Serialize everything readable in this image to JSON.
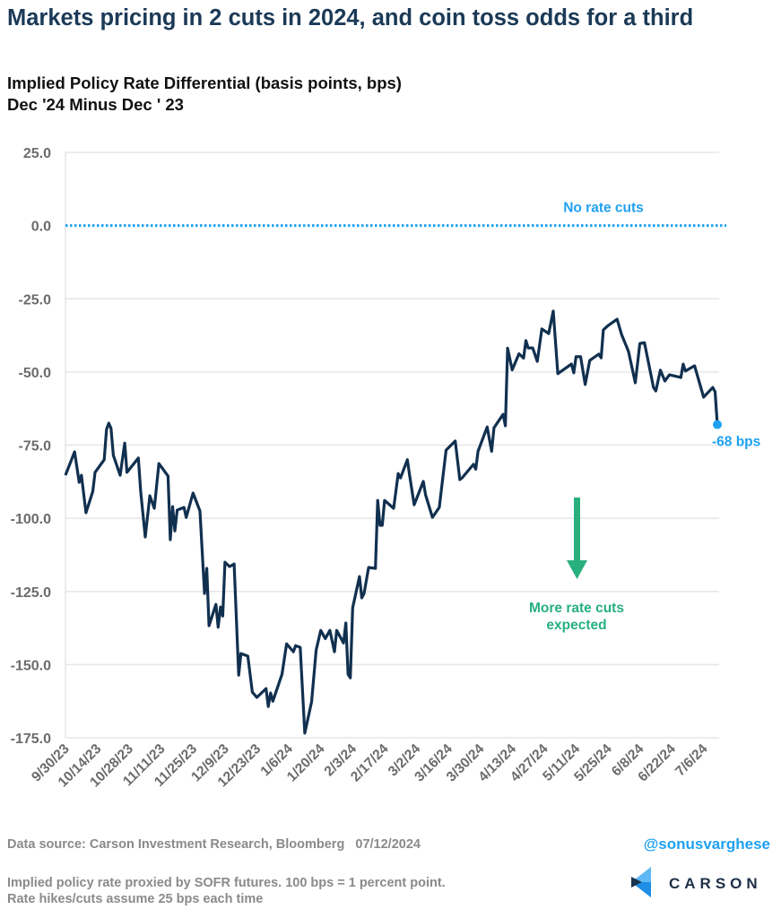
{
  "title": "Markets pricing in 2 cuts in 2024, and coin toss odds for a third",
  "subtitle_line1": "Implied Policy Rate Differential (basis points, bps)",
  "subtitle_line2": "Dec '24 Minus Dec ' 23",
  "footer": {
    "source": "Data source: Carson Investment Research, Bloomberg   07/12/2024",
    "handle": "@sonusvarghese",
    "note_line1": "Implied policy rate proxied by SOFR futures. 100 bps = 1 percent point.",
    "note_line2": "Rate hikes/cuts assume 25 bps each time",
    "logo_text": "CARSON"
  },
  "colors": {
    "line": "#11304f",
    "reference": "#1ea1f2",
    "arrow": "#27b07e",
    "grid": "#e6e6e6",
    "tick_text": "#6b6b6b"
  },
  "chart_data": {
    "type": "line",
    "title": "Implied Policy Rate Differential (basis points, bps)",
    "ylim": [
      -175,
      25
    ],
    "xlim": [
      "2023-09-30",
      "2024-07-12"
    ],
    "grid": true,
    "y_ticks": [
      "25.0",
      "0.0",
      "-25.0",
      "-50.0",
      "-75.0",
      "-100.0",
      "-125.0",
      "-150.0",
      "-175.0"
    ],
    "y_tick_values": [
      25,
      0,
      -25,
      -50,
      -75,
      -100,
      -125,
      -150,
      -175
    ],
    "x_ticks": [
      "9/30/23",
      "10/14/23",
      "10/28/23",
      "11/11/23",
      "11/25/23",
      "12/9/23",
      "12/23/23",
      "1/6/24",
      "1/20/24",
      "2/3/24",
      "2/17/24",
      "3/2/24",
      "3/16/24",
      "3/30/24",
      "4/13/24",
      "4/27/24",
      "5/11/24",
      "5/25/24",
      "6/8/24",
      "6/22/24",
      "7/6/24"
    ],
    "x_tick_dates": [
      "2023-09-30",
      "2023-10-14",
      "2023-10-28",
      "2023-11-11",
      "2023-11-25",
      "2023-12-09",
      "2023-12-23",
      "2024-01-06",
      "2024-01-20",
      "2024-02-03",
      "2024-02-17",
      "2024-03-02",
      "2024-03-16",
      "2024-03-30",
      "2024-04-13",
      "2024-04-27",
      "2024-05-11",
      "2024-05-25",
      "2024-06-08",
      "2024-06-22",
      "2024-07-06"
    ],
    "reference_line": {
      "value": 0,
      "label": "No rate cuts",
      "style": "dotted"
    },
    "annotation": {
      "label_line1": "More rate cuts",
      "label_line2": "expected",
      "arrow": "down"
    },
    "last_point_label": "-68 bps",
    "series": [
      {
        "points": [
          [
            "2023-09-30",
            -85.3
          ],
          [
            "2023-10-04",
            -77.3
          ],
          [
            "2023-10-06",
            -87.7
          ],
          [
            "2023-10-07",
            -85.3
          ],
          [
            "2023-10-09",
            -98.1
          ],
          [
            "2023-10-12",
            -90.8
          ],
          [
            "2023-10-13",
            -84.3
          ],
          [
            "2023-10-17",
            -80.0
          ],
          [
            "2023-10-18",
            -69.6
          ],
          [
            "2023-10-19",
            -67.5
          ],
          [
            "2023-10-20",
            -69.3
          ],
          [
            "2023-10-21",
            -78.5
          ],
          [
            "2023-10-24",
            -85.3
          ],
          [
            "2023-10-26",
            -74.3
          ],
          [
            "2023-10-27",
            -84.3
          ],
          [
            "2023-11-01",
            -79.4
          ],
          [
            "2023-11-02",
            -90.8
          ],
          [
            "2023-11-04",
            -106.4
          ],
          [
            "2023-11-06",
            -92.3
          ],
          [
            "2023-11-08",
            -96.6
          ],
          [
            "2023-11-10",
            -81.3
          ],
          [
            "2023-11-14",
            -85.6
          ],
          [
            "2023-11-15",
            -107.3
          ],
          [
            "2023-11-16",
            -96.0
          ],
          [
            "2023-11-17",
            -104.3
          ],
          [
            "2023-11-18",
            -97.2
          ],
          [
            "2023-11-21",
            -96.3
          ],
          [
            "2023-11-22",
            -99.7
          ],
          [
            "2023-11-25",
            -91.4
          ],
          [
            "2023-11-28",
            -97.5
          ],
          [
            "2023-11-30",
            -125.7
          ],
          [
            "2023-12-01",
            -117.1
          ],
          [
            "2023-12-02",
            -136.7
          ],
          [
            "2023-12-05",
            -129.4
          ],
          [
            "2023-12-06",
            -137.2
          ],
          [
            "2023-12-07",
            -130.3
          ],
          [
            "2023-12-08",
            -133.4
          ],
          [
            "2023-12-09",
            -115.0
          ],
          [
            "2023-12-11",
            -116.5
          ],
          [
            "2023-12-13",
            -115.6
          ],
          [
            "2023-12-15",
            -153.6
          ],
          [
            "2023-12-16",
            -146.2
          ],
          [
            "2023-12-19",
            -147.1
          ],
          [
            "2023-12-21",
            -159.4
          ],
          [
            "2023-12-23",
            -161.2
          ],
          [
            "2023-12-27",
            -158.2
          ],
          [
            "2023-12-28",
            -164.3
          ],
          [
            "2023-12-29",
            -159.7
          ],
          [
            "2023-12-30",
            -162.5
          ],
          [
            "2024-01-03",
            -153.3
          ],
          [
            "2024-01-05",
            -142.9
          ],
          [
            "2024-01-08",
            -145.6
          ],
          [
            "2024-01-09",
            -143.5
          ],
          [
            "2024-01-11",
            -144.1
          ],
          [
            "2024-01-13",
            -173.4
          ],
          [
            "2024-01-16",
            -162.7
          ],
          [
            "2024-01-18",
            -145.0
          ],
          [
            "2024-01-20",
            -138.3
          ],
          [
            "2024-01-22",
            -141.1
          ],
          [
            "2024-01-24",
            -138.3
          ],
          [
            "2024-01-26",
            -145.6
          ],
          [
            "2024-01-27",
            -138.3
          ],
          [
            "2024-01-30",
            -142.6
          ],
          [
            "2024-01-31",
            -135.8
          ],
          [
            "2024-02-01",
            -153.3
          ],
          [
            "2024-02-02",
            -154.5
          ],
          [
            "2024-02-03",
            -130.6
          ],
          [
            "2024-02-06",
            -119.9
          ],
          [
            "2024-02-07",
            -127.2
          ],
          [
            "2024-02-08",
            -125.7
          ],
          [
            "2024-02-10",
            -116.8
          ],
          [
            "2024-02-13",
            -117.1
          ],
          [
            "2024-02-14",
            -93.9
          ],
          [
            "2024-02-15",
            -102.4
          ],
          [
            "2024-02-16",
            -102.4
          ],
          [
            "2024-02-17",
            -93.9
          ],
          [
            "2024-02-21",
            -96.6
          ],
          [
            "2024-02-23",
            -84.7
          ],
          [
            "2024-02-24",
            -86.2
          ],
          [
            "2024-02-27",
            -80.0
          ],
          [
            "2024-02-28",
            -85.3
          ],
          [
            "2024-03-01",
            -95.4
          ],
          [
            "2024-03-05",
            -87.4
          ],
          [
            "2024-03-06",
            -92.0
          ],
          [
            "2024-03-09",
            -99.7
          ],
          [
            "2024-03-12",
            -96.3
          ],
          [
            "2024-03-15",
            -76.7
          ],
          [
            "2024-03-19",
            -73.6
          ],
          [
            "2024-03-21",
            -86.8
          ],
          [
            "2024-03-22",
            -86.2
          ],
          [
            "2024-03-27",
            -81.6
          ],
          [
            "2024-03-28",
            -83.2
          ],
          [
            "2024-03-29",
            -77.1
          ],
          [
            "2024-04-02",
            -68.8
          ],
          [
            "2024-04-04",
            -77.1
          ],
          [
            "2024-04-05",
            -69.1
          ],
          [
            "2024-04-09",
            -64.5
          ],
          [
            "2024-04-10",
            -68.4
          ],
          [
            "2024-04-11",
            -41.9
          ],
          [
            "2024-04-13",
            -49.3
          ],
          [
            "2024-04-16",
            -43.8
          ],
          [
            "2024-04-18",
            -45.3
          ],
          [
            "2024-04-19",
            -39.3
          ],
          [
            "2024-04-20",
            -41.8
          ],
          [
            "2024-04-22",
            -41.8
          ],
          [
            "2024-04-24",
            -46.4
          ],
          [
            "2024-04-26",
            -35.3
          ],
          [
            "2024-04-29",
            -36.9
          ],
          [
            "2024-05-01",
            -29.2
          ],
          [
            "2024-05-03",
            -50.6
          ],
          [
            "2024-05-09",
            -47.3
          ],
          [
            "2024-05-10",
            -50.3
          ],
          [
            "2024-05-11",
            -44.8
          ],
          [
            "2024-05-13",
            -44.8
          ],
          [
            "2024-05-15",
            -54.3
          ],
          [
            "2024-05-17",
            -46.1
          ],
          [
            "2024-05-21",
            -43.9
          ],
          [
            "2024-05-22",
            -45.2
          ],
          [
            "2024-05-23",
            -35.6
          ],
          [
            "2024-05-25",
            -34.2
          ],
          [
            "2024-05-29",
            -32.0
          ],
          [
            "2024-05-31",
            -37.2
          ],
          [
            "2024-06-03",
            -43.0
          ],
          [
            "2024-06-06",
            -53.7
          ],
          [
            "2024-06-08",
            -40.3
          ],
          [
            "2024-06-10",
            -40.0
          ],
          [
            "2024-06-14",
            -55.3
          ],
          [
            "2024-06-15",
            -56.5
          ],
          [
            "2024-06-17",
            -49.4
          ],
          [
            "2024-06-19",
            -53.1
          ],
          [
            "2024-06-21",
            -51.0
          ],
          [
            "2024-06-26",
            -51.9
          ],
          [
            "2024-06-27",
            -47.3
          ],
          [
            "2024-06-28",
            -49.7
          ],
          [
            "2024-07-02",
            -47.9
          ],
          [
            "2024-07-06",
            -58.6
          ],
          [
            "2024-07-10",
            -55.3
          ],
          [
            "2024-07-11",
            -56.8
          ],
          [
            "2024-07-12",
            -68.0
          ]
        ]
      }
    ]
  }
}
